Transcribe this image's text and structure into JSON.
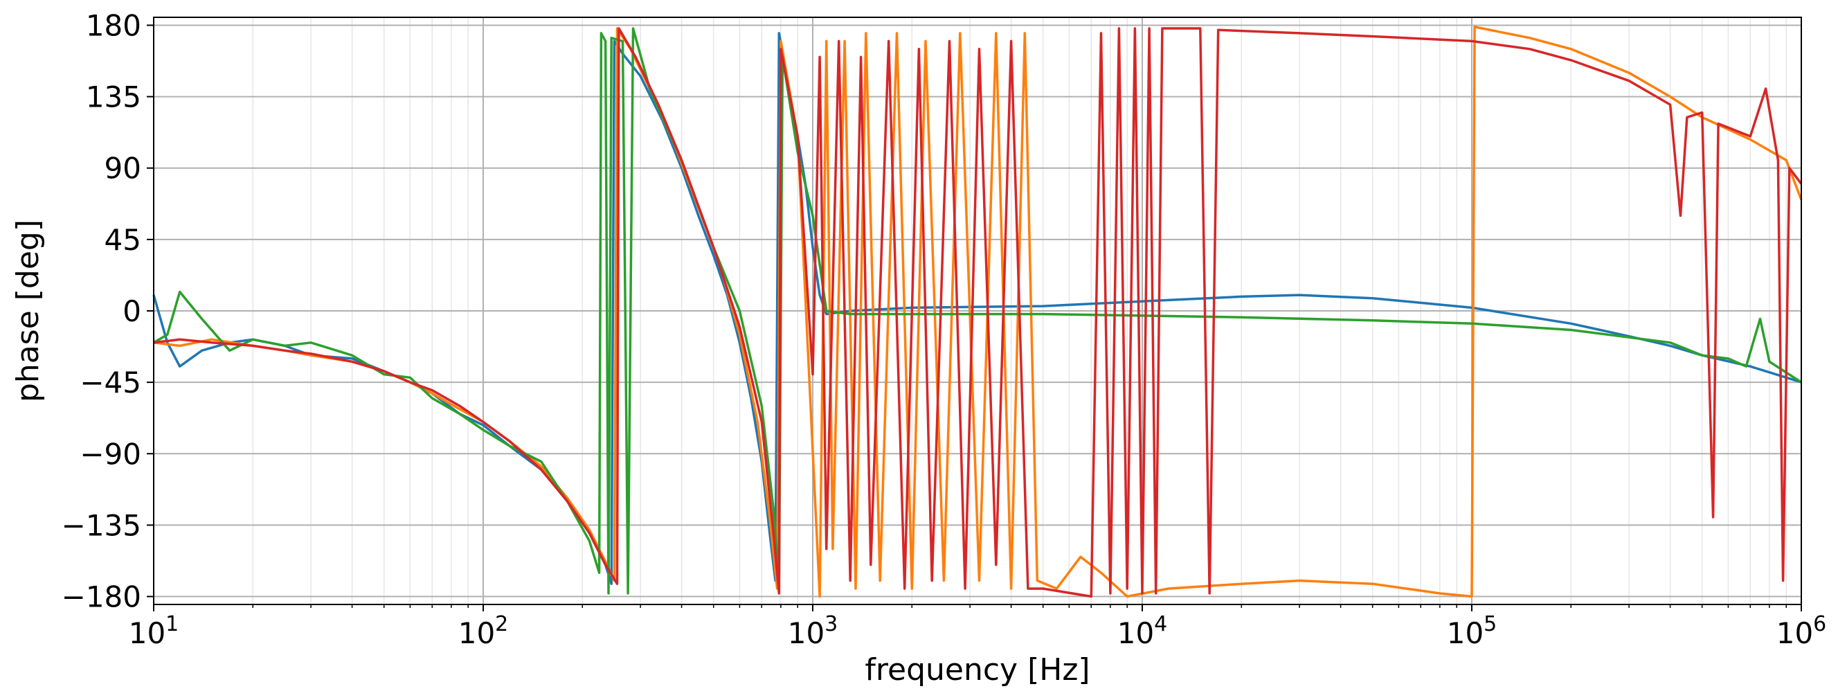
{
  "chart_data": {
    "type": "line",
    "xscale": "log",
    "xlabel": "frequency [Hz]",
    "ylabel": "phase [deg]",
    "xlim": [
      10,
      1000000
    ],
    "ylim": [
      -185,
      185
    ],
    "yticks": [
      -180,
      -135,
      -90,
      -45,
      0,
      45,
      90,
      135,
      180
    ],
    "ytick_labels": [
      "−180",
      "−135",
      "−90",
      "−45",
      "0",
      "45",
      "90",
      "135",
      "180"
    ],
    "xticks": [
      10,
      100,
      1000,
      10000,
      100000,
      1000000
    ],
    "xtick_labels": [
      {
        "base": "10",
        "exp": "1"
      },
      {
        "base": "10",
        "exp": "2"
      },
      {
        "base": "10",
        "exp": "3"
      },
      {
        "base": "10",
        "exp": "4"
      },
      {
        "base": "10",
        "exp": "5"
      },
      {
        "base": "10",
        "exp": "6"
      }
    ],
    "grid": true,
    "series": [
      {
        "color": "#1f77b4",
        "points": [
          [
            10,
            10
          ],
          [
            11,
            -20
          ],
          [
            12,
            -35
          ],
          [
            14,
            -25
          ],
          [
            17,
            -20
          ],
          [
            20,
            -18
          ],
          [
            25,
            -22
          ],
          [
            30,
            -28
          ],
          [
            40,
            -30
          ],
          [
            50,
            -38
          ],
          [
            60,
            -45
          ],
          [
            70,
            -52
          ],
          [
            85,
            -65
          ],
          [
            100,
            -72
          ],
          [
            120,
            -85
          ],
          [
            150,
            -100
          ],
          [
            180,
            -120
          ],
          [
            210,
            -140
          ],
          [
            235,
            -160
          ],
          [
            245,
            -172
          ],
          [
            250,
            170
          ],
          [
            265,
            162
          ],
          [
            300,
            148
          ],
          [
            350,
            120
          ],
          [
            400,
            90
          ],
          [
            450,
            60
          ],
          [
            500,
            35
          ],
          [
            550,
            10
          ],
          [
            600,
            -20
          ],
          [
            650,
            -55
          ],
          [
            700,
            -95
          ],
          [
            740,
            -140
          ],
          [
            770,
            -170
          ],
          [
            790,
            175
          ],
          [
            830,
            150
          ],
          [
            900,
            110
          ],
          [
            950,
            80
          ],
          [
            1000,
            40
          ],
          [
            1050,
            10
          ],
          [
            1100,
            -2
          ],
          [
            1300,
            0
          ],
          [
            2000,
            2
          ],
          [
            5000,
            3
          ],
          [
            10000,
            6
          ],
          [
            20000,
            9
          ],
          [
            30000,
            10
          ],
          [
            50000,
            8
          ],
          [
            100000,
            2
          ],
          [
            200000,
            -8
          ],
          [
            300000,
            -16
          ],
          [
            400000,
            -22
          ],
          [
            500000,
            -28
          ],
          [
            700000,
            -35
          ],
          [
            1000000,
            -45
          ]
        ]
      },
      {
        "color": "#ff7f0e",
        "points": [
          [
            10,
            -20
          ],
          [
            12,
            -22
          ],
          [
            15,
            -18
          ],
          [
            20,
            -22
          ],
          [
            25,
            -25
          ],
          [
            30,
            -28
          ],
          [
            40,
            -32
          ],
          [
            50,
            -38
          ],
          [
            60,
            -45
          ],
          [
            70,
            -52
          ],
          [
            85,
            -62
          ],
          [
            100,
            -70
          ],
          [
            120,
            -82
          ],
          [
            150,
            -98
          ],
          [
            180,
            -118
          ],
          [
            210,
            -138
          ],
          [
            235,
            -158
          ],
          [
            250,
            -170
          ],
          [
            255,
            178
          ],
          [
            280,
            165
          ],
          [
            320,
            140
          ],
          [
            380,
            105
          ],
          [
            450,
            65
          ],
          [
            520,
            30
          ],
          [
            600,
            -15
          ],
          [
            680,
            -70
          ],
          [
            740,
            -130
          ],
          [
            780,
            -175
          ],
          [
            800,
            170
          ],
          [
            900,
            110
          ],
          [
            1050,
            -180
          ],
          [
            1100,
            170
          ],
          [
            1150,
            -150
          ],
          [
            1250,
            170
          ],
          [
            1350,
            -175
          ],
          [
            1450,
            175
          ],
          [
            1600,
            -170
          ],
          [
            1800,
            175
          ],
          [
            2000,
            -175
          ],
          [
            2200,
            170
          ],
          [
            2500,
            -170
          ],
          [
            2800,
            175
          ],
          [
            3200,
            -170
          ],
          [
            3600,
            175
          ],
          [
            4000,
            -175
          ],
          [
            4400,
            175
          ],
          [
            4800,
            -170
          ],
          [
            5500,
            -175
          ],
          [
            6500,
            -155
          ],
          [
            7500,
            -165
          ],
          [
            9000,
            -180
          ],
          [
            12000,
            -175
          ],
          [
            20000,
            -172
          ],
          [
            30000,
            -170
          ],
          [
            50000,
            -172
          ],
          [
            80000,
            -178
          ],
          [
            100000,
            -180
          ],
          [
            102000,
            179
          ],
          [
            150000,
            172
          ],
          [
            200000,
            165
          ],
          [
            300000,
            150
          ],
          [
            400000,
            135
          ],
          [
            500000,
            122
          ],
          [
            700000,
            108
          ],
          [
            900000,
            95
          ],
          [
            1000000,
            70
          ]
        ]
      },
      {
        "color": "#2ca02c",
        "points": [
          [
            10,
            -20
          ],
          [
            11,
            -15
          ],
          [
            12,
            12
          ],
          [
            14,
            -5
          ],
          [
            17,
            -25
          ],
          [
            20,
            -18
          ],
          [
            25,
            -22
          ],
          [
            30,
            -20
          ],
          [
            40,
            -28
          ],
          [
            50,
            -40
          ],
          [
            60,
            -42
          ],
          [
            70,
            -55
          ],
          [
            85,
            -65
          ],
          [
            100,
            -75
          ],
          [
            120,
            -85
          ],
          [
            150,
            -95
          ],
          [
            180,
            -120
          ],
          [
            210,
            -145
          ],
          [
            225,
            -165
          ],
          [
            228,
            175
          ],
          [
            235,
            170
          ],
          [
            240,
            -178
          ],
          [
            245,
            172
          ],
          [
            265,
            170
          ],
          [
            275,
            -178
          ],
          [
            285,
            178
          ],
          [
            320,
            140
          ],
          [
            400,
            95
          ],
          [
            500,
            40
          ],
          [
            600,
            0
          ],
          [
            700,
            -60
          ],
          [
            760,
            -125
          ],
          [
            790,
            -170
          ],
          [
            810,
            160
          ],
          [
            900,
            100
          ],
          [
            1000,
            60
          ],
          [
            1100,
            0
          ],
          [
            1300,
            -2
          ],
          [
            2000,
            -2
          ],
          [
            5000,
            -2
          ],
          [
            10000,
            -3
          ],
          [
            20000,
            -4
          ],
          [
            50000,
            -6
          ],
          [
            100000,
            -8
          ],
          [
            200000,
            -12
          ],
          [
            400000,
            -20
          ],
          [
            500000,
            -28
          ],
          [
            600000,
            -30
          ],
          [
            680000,
            -35
          ],
          [
            750000,
            -5
          ],
          [
            800000,
            -32
          ],
          [
            1000000,
            -45
          ]
        ]
      },
      {
        "color": "#d62728",
        "points": [
          [
            10,
            -20
          ],
          [
            12,
            -18
          ],
          [
            15,
            -20
          ],
          [
            20,
            -22
          ],
          [
            25,
            -25
          ],
          [
            30,
            -27
          ],
          [
            40,
            -32
          ],
          [
            50,
            -38
          ],
          [
            60,
            -45
          ],
          [
            70,
            -50
          ],
          [
            85,
            -60
          ],
          [
            100,
            -70
          ],
          [
            120,
            -82
          ],
          [
            150,
            -100
          ],
          [
            180,
            -120
          ],
          [
            210,
            -140
          ],
          [
            235,
            -160
          ],
          [
            255,
            -172
          ],
          [
            258,
            178
          ],
          [
            290,
            160
          ],
          [
            340,
            130
          ],
          [
            400,
            95
          ],
          [
            500,
            40
          ],
          [
            600,
            -10
          ],
          [
            700,
            -70
          ],
          [
            760,
            -140
          ],
          [
            790,
            -178
          ],
          [
            800,
            165
          ],
          [
            900,
            110
          ],
          [
            1000,
            -40
          ],
          [
            1050,
            160
          ],
          [
            1100,
            -150
          ],
          [
            1200,
            170
          ],
          [
            1300,
            -170
          ],
          [
            1400,
            160
          ],
          [
            1500,
            -160
          ],
          [
            1700,
            170
          ],
          [
            1900,
            -175
          ],
          [
            2100,
            165
          ],
          [
            2300,
            -170
          ],
          [
            2600,
            170
          ],
          [
            2900,
            -175
          ],
          [
            3200,
            165
          ],
          [
            3600,
            -160
          ],
          [
            4000,
            170
          ],
          [
            4500,
            -175
          ],
          [
            5000,
            -175
          ],
          [
            7000,
            -180
          ],
          [
            7500,
            175
          ],
          [
            8000,
            -178
          ],
          [
            8500,
            178
          ],
          [
            9000,
            -175
          ],
          [
            9500,
            178
          ],
          [
            10000,
            -178
          ],
          [
            10500,
            178
          ],
          [
            11000,
            -178
          ],
          [
            11500,
            178
          ],
          [
            13000,
            178
          ],
          [
            15000,
            178
          ],
          [
            16000,
            -178
          ],
          [
            17000,
            177
          ],
          [
            30000,
            175
          ],
          [
            50000,
            173
          ],
          [
            100000,
            170
          ],
          [
            150000,
            165
          ],
          [
            200000,
            158
          ],
          [
            300000,
            145
          ],
          [
            400000,
            130
          ],
          [
            430000,
            60
          ],
          [
            450000,
            122
          ],
          [
            500000,
            125
          ],
          [
            540000,
            -130
          ],
          [
            560000,
            118
          ],
          [
            700000,
            110
          ],
          [
            780000,
            140
          ],
          [
            850000,
            95
          ],
          [
            880000,
            -170
          ],
          [
            920000,
            90
          ],
          [
            1000000,
            80
          ]
        ]
      }
    ]
  }
}
